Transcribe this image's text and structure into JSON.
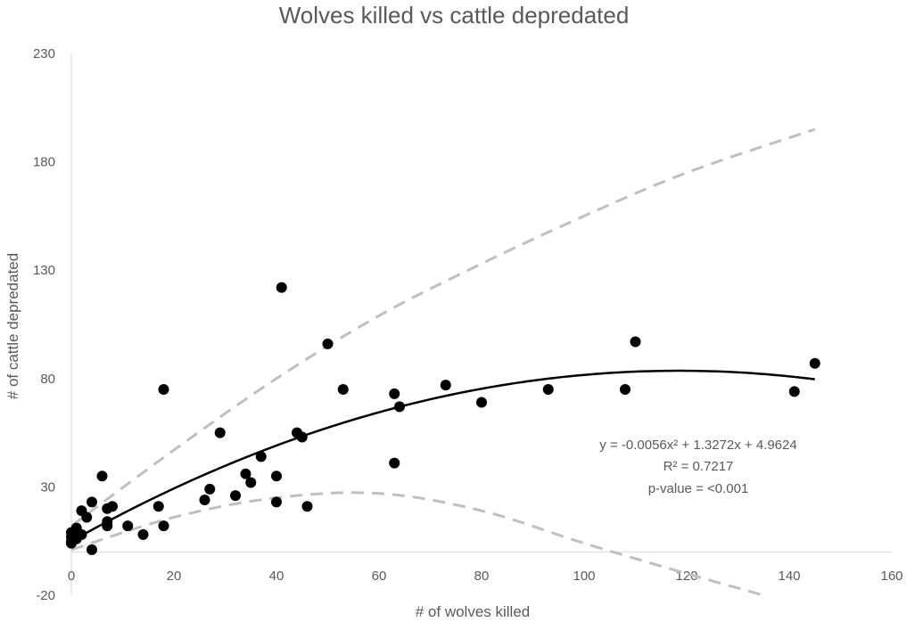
{
  "chart_data": {
    "type": "scatter",
    "title": "Wolves killed vs cattle depredated",
    "xlabel": "# of wolves killed",
    "ylabel": "# of cattle depredated",
    "xlim": [
      0,
      160
    ],
    "ylim": [
      -20,
      230
    ],
    "xticks": [
      "0",
      "20",
      "40",
      "60",
      "80",
      "100",
      "120",
      "140",
      "160"
    ],
    "yticks": [
      "-20",
      "30",
      "80",
      "130",
      "180",
      "230"
    ],
    "grid": false,
    "legend": "none",
    "points": [
      {
        "x": 0,
        "y": 4
      },
      {
        "x": 0,
        "y": 7
      },
      {
        "x": 0,
        "y": 9
      },
      {
        "x": 0,
        "y": 5
      },
      {
        "x": 1,
        "y": 6
      },
      {
        "x": 1,
        "y": 11
      },
      {
        "x": 2,
        "y": 8
      },
      {
        "x": 2,
        "y": 19
      },
      {
        "x": 3,
        "y": 16
      },
      {
        "x": 4,
        "y": 23
      },
      {
        "x": 4,
        "y": 1
      },
      {
        "x": 6,
        "y": 35
      },
      {
        "x": 7,
        "y": 12
      },
      {
        "x": 7,
        "y": 14
      },
      {
        "x": 7,
        "y": 20
      },
      {
        "x": 8,
        "y": 21
      },
      {
        "x": 11,
        "y": 12
      },
      {
        "x": 14,
        "y": 8
      },
      {
        "x": 17,
        "y": 21
      },
      {
        "x": 18,
        "y": 12
      },
      {
        "x": 18,
        "y": 75
      },
      {
        "x": 26,
        "y": 24
      },
      {
        "x": 27,
        "y": 29
      },
      {
        "x": 29,
        "y": 55
      },
      {
        "x": 32,
        "y": 26
      },
      {
        "x": 34,
        "y": 36
      },
      {
        "x": 35,
        "y": 32
      },
      {
        "x": 37,
        "y": 44
      },
      {
        "x": 40,
        "y": 35
      },
      {
        "x": 40,
        "y": 23
      },
      {
        "x": 41,
        "y": 122
      },
      {
        "x": 44,
        "y": 55
      },
      {
        "x": 45,
        "y": 53
      },
      {
        "x": 46,
        "y": 21
      },
      {
        "x": 50,
        "y": 96
      },
      {
        "x": 53,
        "y": 75
      },
      {
        "x": 63,
        "y": 73
      },
      {
        "x": 63,
        "y": 41
      },
      {
        "x": 64,
        "y": 67
      },
      {
        "x": 73,
        "y": 77
      },
      {
        "x": 80,
        "y": 69
      },
      {
        "x": 93,
        "y": 75
      },
      {
        "x": 108,
        "y": 75
      },
      {
        "x": 110,
        "y": 97
      },
      {
        "x": 141,
        "y": 74
      },
      {
        "x": 145,
        "y": 87
      }
    ],
    "trendline": {
      "type": "polynomial",
      "coefficients": [
        -0.0056,
        1.3272,
        4.9624
      ],
      "x_range": [
        0,
        145
      ]
    },
    "confidence_bands": {
      "upper": [
        {
          "x": 0,
          "y": 12
        },
        {
          "x": 20,
          "y": 47
        },
        {
          "x": 40,
          "y": 80
        },
        {
          "x": 60,
          "y": 109
        },
        {
          "x": 80,
          "y": 133
        },
        {
          "x": 100,
          "y": 155
        },
        {
          "x": 120,
          "y": 175
        },
        {
          "x": 145,
          "y": 195
        }
      ],
      "lower": [
        {
          "x": 0,
          "y": 1
        },
        {
          "x": 20,
          "y": 16
        },
        {
          "x": 40,
          "y": 25
        },
        {
          "x": 60,
          "y": 27
        },
        {
          "x": 80,
          "y": 19
        },
        {
          "x": 100,
          "y": 4
        },
        {
          "x": 120,
          "y": -10
        },
        {
          "x": 135,
          "y": -20
        }
      ]
    },
    "annotations": [
      "y = -0.0056x² + 1.3272x + 4.9624",
      "R² = 0.7217",
      "p-value = <0.001"
    ]
  }
}
